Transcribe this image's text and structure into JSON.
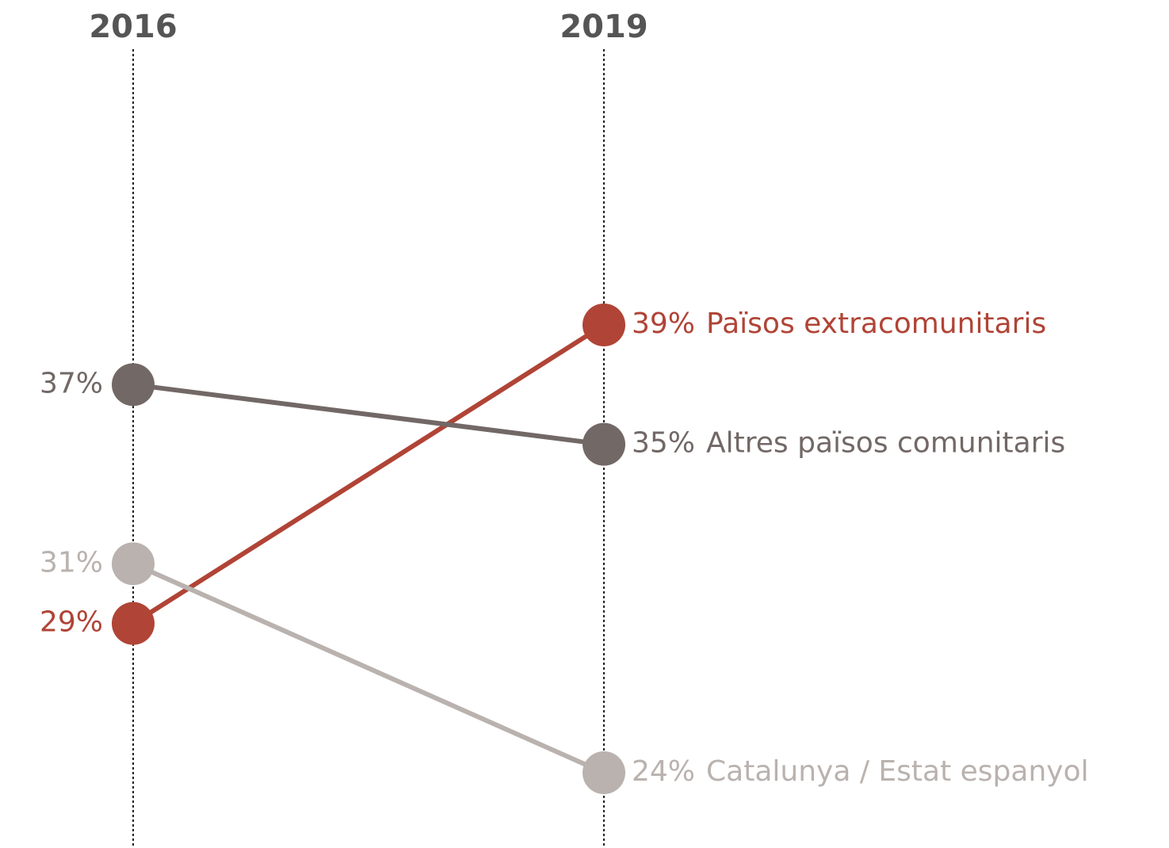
{
  "chart_data": {
    "type": "slope",
    "categories": [
      "2016",
      "2019"
    ],
    "series": [
      {
        "name": "Països extracomunitaris",
        "color": "#b04436",
        "values": [
          29,
          39
        ],
        "value_labels": [
          "29%",
          "39%"
        ]
      },
      {
        "name": "Altres països comunitaris",
        "color": "#726866",
        "values": [
          37,
          35
        ],
        "value_labels": [
          "37%",
          "35%"
        ]
      },
      {
        "name": "Catalunya / Estat espanyol",
        "color": "#b9b2ae",
        "values": [
          31,
          24
        ],
        "value_labels": [
          "31%",
          "24%"
        ]
      }
    ]
  }
}
